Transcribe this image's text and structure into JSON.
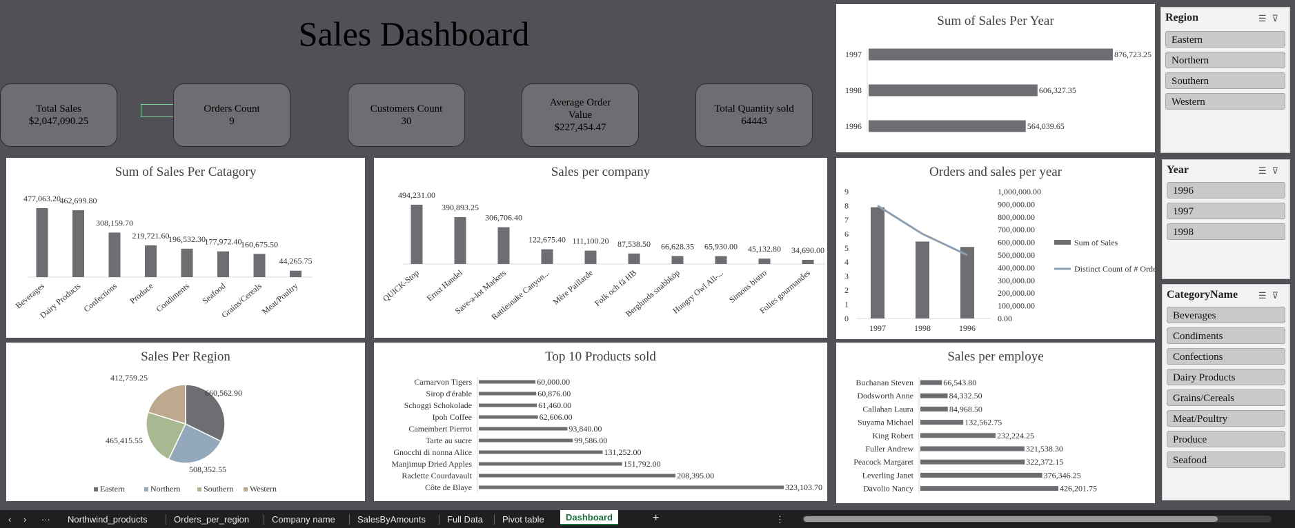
{
  "dashboard_title": "Sales Dashboard",
  "kpis": [
    {
      "label": "Total Sales",
      "value": "$2,047,090.25"
    },
    {
      "label": "Orders Count",
      "value": "9"
    },
    {
      "label": "Customers Count",
      "value": "30"
    },
    {
      "label": "Average Order Value",
      "value": "$227,454.47"
    },
    {
      "label": "Total Quantity sold",
      "value": "64443"
    }
  ],
  "colors": {
    "bar": "#6e6e72",
    "pie_eastern": "#6e6e72",
    "pie_northern": "#93a9bb",
    "pie_southern": "#a8b890",
    "pie_western": "#bda98e",
    "line": "#8ea0b0"
  },
  "charts": {
    "year_sales": {
      "title": "Sum of Sales Per Year"
    },
    "category": {
      "title": "Sum of Sales Per Catagory"
    },
    "company": {
      "title": "Sales per company"
    },
    "orders_year": {
      "title": "Orders and sales per year",
      "legend": [
        "Sum of Sales",
        "Distinct Count of # Orders"
      ]
    },
    "region": {
      "title": "Sales Per Region"
    },
    "products": {
      "title": "Top 10 Products sold"
    },
    "employee": {
      "title": "Sales per employe"
    }
  },
  "chart_data": [
    {
      "id": "year_sales",
      "type": "bar",
      "orientation": "horizontal",
      "title": "Sum of Sales Per Year",
      "categories": [
        "1997",
        "1998",
        "1996"
      ],
      "values": [
        876723.25,
        606327.35,
        564039.65
      ],
      "labels": [
        "876,723.25",
        "606,327.35",
        "564,039.65"
      ]
    },
    {
      "id": "category",
      "type": "bar",
      "title": "Sum of Sales Per Catagory",
      "categories": [
        "Beverages",
        "Dairy Products",
        "Confections",
        "Produce",
        "Condiments",
        "Seafood",
        "Grains/Cereals",
        "Meat/Poultry"
      ],
      "values": [
        477063.2,
        462699.8,
        308159.7,
        219721.6,
        196532.3,
        177972.4,
        160675.5,
        44265.75
      ],
      "labels": [
        "477,063.20",
        "462,699.80",
        "308,159.70",
        "219,721.60",
        "196,532.30",
        "177,972.40",
        "160,675.50",
        "44,265.75"
      ]
    },
    {
      "id": "company",
      "type": "bar",
      "title": "Sales per company",
      "categories": [
        "QUICK-Stop",
        "Ernst Handel",
        "Save-a-lot Markets",
        "Rattlesnake Canyon...",
        "Mère Paillarde",
        "Folk och fä HB",
        "Berglunds snabbköp",
        "Hungry Owl All-...",
        "Simons bistro",
        "Folies gourmandes"
      ],
      "values": [
        494231.0,
        390893.25,
        306706.4,
        122675.4,
        111100.2,
        87538.5,
        66628.35,
        65930.0,
        45132.8,
        34690.0
      ],
      "labels": [
        "494,231.00",
        "390,893.25",
        "306,706.40",
        "122,675.40",
        "111,100.20",
        "87,538.50",
        "66,628.35",
        "65,930.00",
        "45,132.80",
        "34,690.00"
      ]
    },
    {
      "id": "orders_year",
      "type": "bar",
      "title": "Orders and sales per year",
      "categories": [
        "1997",
        "1998",
        "1996"
      ],
      "series": [
        {
          "name": "Sum of Sales",
          "values": [
            876723.25,
            606327.35,
            564039.65
          ]
        },
        {
          "name": "Distinct Count of # Orders",
          "values": [
            8,
            6,
            4.5
          ]
        }
      ],
      "y1_ticks": [
        "0",
        "1",
        "2",
        "3",
        "4",
        "5",
        "6",
        "7",
        "8",
        "9"
      ],
      "y2_ticks": [
        "0.00",
        "100,000.00",
        "200,000.00",
        "300,000.00",
        "400,000.00",
        "500,000.00",
        "600,000.00",
        "700,000.00",
        "800,000.00",
        "900,000.00",
        "1,000,000.00"
      ],
      "y1lim": [
        0,
        9
      ],
      "y2lim": [
        0,
        1000000
      ]
    },
    {
      "id": "region",
      "type": "pie",
      "title": "Sales Per Region",
      "categories": [
        "Eastern",
        "Northern",
        "Southern",
        "Western"
      ],
      "values": [
        660562.9,
        508352.55,
        465415.55,
        412759.25
      ],
      "labels": [
        "660,562.90",
        "508,352.55",
        "465,415.55",
        "412,759.25"
      ]
    },
    {
      "id": "products",
      "type": "bar",
      "orientation": "horizontal",
      "title": "Top 10 Products sold",
      "categories": [
        "Carnarvon Tigers",
        "Sirop d'érable",
        "Schoggi Schokolade",
        "Ipoh Coffee",
        "Camembert Pierrot",
        "Tarte au sucre",
        "Gnocchi di nonna Alice",
        "Manjimup Dried Apples",
        "Raclette Courdavault",
        "Côte de Blaye"
      ],
      "values": [
        60000.0,
        60876.0,
        61460.0,
        62606.0,
        93840.0,
        99586.0,
        131252.0,
        151792.0,
        208395.0,
        323103.7
      ],
      "labels": [
        "60,000.00",
        "60,876.00",
        "61,460.00",
        "62,606.00",
        "93,840.00",
        "99,586.00",
        "131,252.00",
        "151,792.00",
        "208,395.00",
        "323,103.70"
      ]
    },
    {
      "id": "employee",
      "type": "bar",
      "orientation": "horizontal",
      "title": "Sales per employe",
      "categories": [
        "Buchanan Steven",
        "Dodsworth Anne",
        "Callahan Laura",
        "Suyama Michael",
        "King Robert",
        "Fuller Andrew",
        "Peacock Margaret",
        "Leverling Janet",
        "Davolio Nancy"
      ],
      "values": [
        66543.8,
        84332.5,
        84968.5,
        132562.75,
        232224.25,
        321538.3,
        322372.15,
        376346.25,
        426201.75
      ],
      "labels": [
        "66,543.80",
        "84,332.50",
        "84,968.50",
        "132,562.75",
        "232,224.25",
        "321,538.30",
        "322,372.15",
        "376,346.25",
        "426,201.75"
      ]
    }
  ],
  "slicers": {
    "region": {
      "header": "Region",
      "items": [
        "Eastern",
        "Northern",
        "Southern",
        "Western"
      ]
    },
    "year": {
      "header": "Year",
      "items": [
        "1996",
        "1997",
        "1998"
      ]
    },
    "category": {
      "header": "CategoryName",
      "items": [
        "Beverages",
        "Condiments",
        "Confections",
        "Dairy Products",
        "Grains/Cereals",
        "Meat/Poultry",
        "Produce",
        "Seafood"
      ]
    }
  },
  "tabs": [
    "Northwind_products",
    "Orders_per_region",
    "Company name",
    "SalesByAmounts",
    "Full Data",
    "Pivot table",
    "Dashboard"
  ],
  "active_tab": "Dashboard",
  "nav": {
    "prev": "‹",
    "next": "›",
    "more": "···",
    "add": "+",
    "options": "⋮"
  }
}
